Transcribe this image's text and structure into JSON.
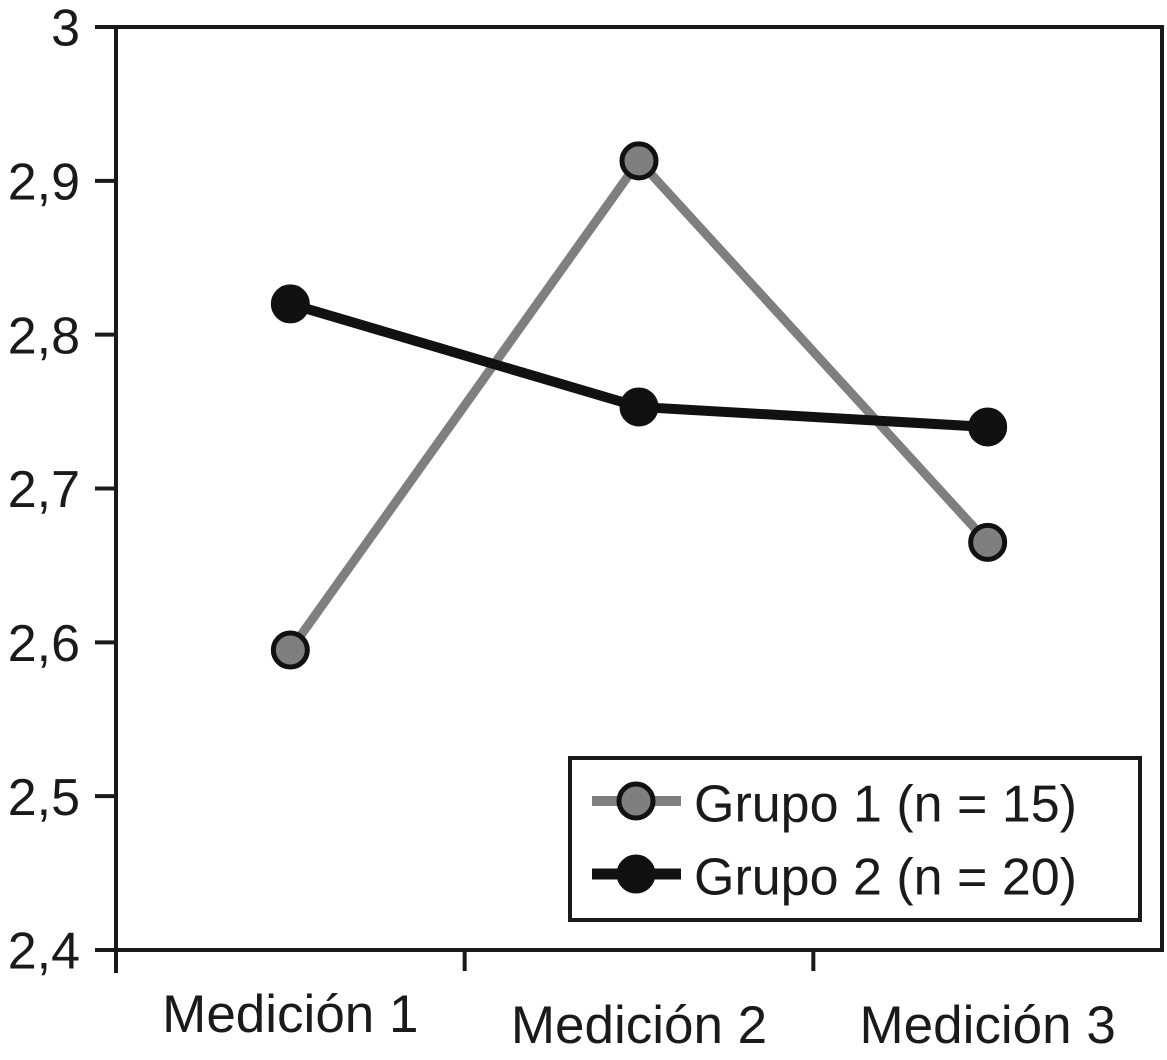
{
  "figure": {
    "background": "#ffffff",
    "text_color": "#1a1a1a"
  },
  "chart_data": {
    "type": "line",
    "title": "",
    "xlabel": "",
    "ylabel": "",
    "categories": [
      "Medición 1",
      "Medición 2",
      "Medición 3"
    ],
    "series": [
      {
        "name": "Grupo 1 (n = 15)",
        "values": [
          2.595,
          2.913,
          2.665
        ],
        "color": "#7f7f7f",
        "marker_fill": "#7f7f7f",
        "marker_stroke": "#111111"
      },
      {
        "name": "Grupo 2 (n = 20)",
        "values": [
          2.82,
          2.753,
          2.74
        ],
        "color": "#111111",
        "marker_fill": "#111111",
        "marker_stroke": "#111111"
      }
    ],
    "ylim": [
      2.4,
      3.0
    ],
    "y_ticks": [
      {
        "value": 3.0,
        "label": "3"
      },
      {
        "value": 2.9,
        "label": "2,9"
      },
      {
        "value": 2.8,
        "label": "2,8"
      },
      {
        "value": 2.7,
        "label": "2,7"
      },
      {
        "value": 2.6,
        "label": "2,6"
      },
      {
        "value": 2.5,
        "label": "2,5"
      },
      {
        "value": 2.4,
        "label": "2,4"
      }
    ],
    "decimal_separator": ",",
    "grid": false,
    "legend_position": "bottom-right",
    "axis_color": "#1a1a1a",
    "plot_background": "#ffffff"
  }
}
